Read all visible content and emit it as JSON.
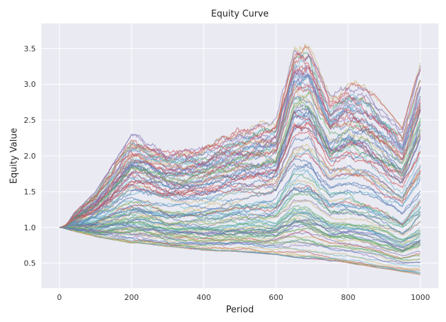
{
  "chart_data": {
    "type": "line",
    "title": "Equity Curve",
    "xlabel": "Period",
    "ylabel": "Equity Value",
    "xlim": [
      -50,
      1050
    ],
    "ylim": [
      0.15,
      3.85
    ],
    "xticks": [
      "0",
      "200",
      "400",
      "600",
      "800",
      "1000"
    ],
    "yticks": [
      "0.5",
      "1.0",
      "1.5",
      "2.0",
      "2.5",
      "3.0",
      "3.5"
    ],
    "grid": true,
    "legend": "none",
    "background": "#eaeaf2",
    "n_series": 100,
    "n_points": 1001,
    "start_value": 1.0,
    "palette": [
      "#4c72b0",
      "#55a868",
      "#c44e52",
      "#8172b2",
      "#ccb974",
      "#64b5cd"
    ],
    "envelope": {
      "x": [
        0,
        100,
        200,
        220,
        300,
        400,
        500,
        600,
        650,
        690,
        750,
        800,
        850,
        900,
        950,
        1000
      ],
      "upper": [
        1.0,
        1.5,
        2.3,
        2.3,
        2.1,
        2.2,
        2.45,
        2.6,
        3.65,
        3.7,
        2.9,
        3.1,
        3.0,
        2.7,
        2.4,
        3.3
      ],
      "lower": [
        1.0,
        0.87,
        0.78,
        0.78,
        0.73,
        0.68,
        0.66,
        0.62,
        0.58,
        0.56,
        0.53,
        0.5,
        0.46,
        0.42,
        0.38,
        0.34
      ]
    }
  }
}
